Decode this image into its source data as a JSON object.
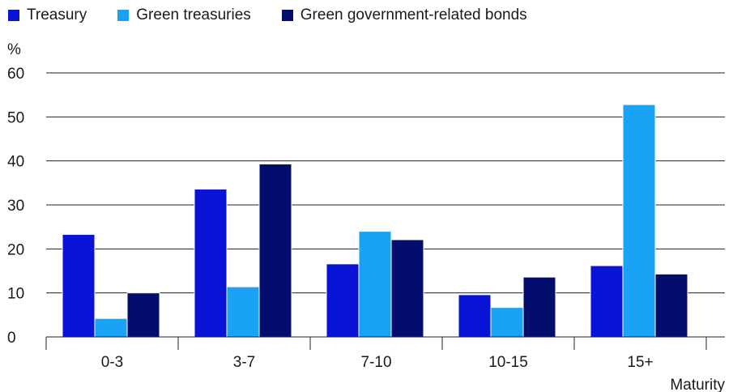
{
  "chart_data": {
    "type": "bar",
    "categories": [
      "0-3",
      "3-7",
      "7-10",
      "10-15",
      "15+"
    ],
    "series": [
      {
        "name": "Treasury",
        "color": "#0a14d6",
        "values": [
          23.3,
          33.6,
          16.6,
          9.6,
          16.2
        ]
      },
      {
        "name": "Green treasuries",
        "color": "#1aa3f5",
        "values": [
          4.2,
          11.4,
          24.0,
          6.7,
          52.8
        ]
      },
      {
        "name": "Green government-related bonds",
        "color": "#020d6e",
        "values": [
          10.0,
          39.3,
          22.1,
          13.6,
          14.3
        ]
      }
    ],
    "ylabel": "%",
    "xlabel": "Maturity",
    "ylim": [
      0,
      60
    ],
    "yticks": [
      0,
      10,
      20,
      30,
      40,
      50,
      60
    ],
    "grid": true,
    "legend": "top-left"
  }
}
